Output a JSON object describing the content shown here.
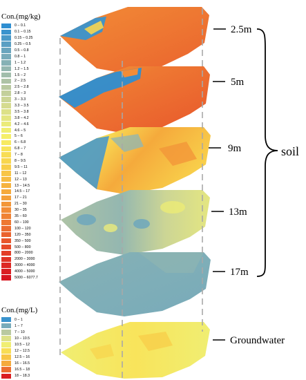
{
  "soil_legend": {
    "title": "Con.(mg/kg)",
    "items": [
      {
        "label": "0 – 0.1",
        "color": "#2e8ed1"
      },
      {
        "label": "0.1 – 0.15",
        "color": "#3a93cd"
      },
      {
        "label": "0.15 – 0.25",
        "color": "#4a99c8"
      },
      {
        "label": "0.25 – 0.5",
        "color": "#5a9fc3"
      },
      {
        "label": "0.5 – 0.8",
        "color": "#6aa5be"
      },
      {
        "label": "0.8 – 1",
        "color": "#78abba"
      },
      {
        "label": "1 – 1.2",
        "color": "#86b1b5"
      },
      {
        "label": "1.2 – 1.5",
        "color": "#94b7b0"
      },
      {
        "label": "1.5 – 2",
        "color": "#a1bdab"
      },
      {
        "label": "2 – 2.5",
        "color": "#aec3a6"
      },
      {
        "label": "2.5 – 2.8",
        "color": "#b9c9a1"
      },
      {
        "label": "2.8 – 3",
        "color": "#c3cf9b"
      },
      {
        "label": "3 – 3.3",
        "color": "#ccd595"
      },
      {
        "label": "3.3 – 3.5",
        "color": "#d5db8f"
      },
      {
        "label": "3.5 – 3.8",
        "color": "#dde188"
      },
      {
        "label": "3.8 – 4.2",
        "color": "#e4e681"
      },
      {
        "label": "4.2 – 4.6",
        "color": "#ebeb7a"
      },
      {
        "label": "4.6 – 5",
        "color": "#f0ee72"
      },
      {
        "label": "5 – 6",
        "color": "#f5ef6a"
      },
      {
        "label": "6 – 6.8",
        "color": "#f7ea62"
      },
      {
        "label": "6.8 – 7",
        "color": "#f8e45b"
      },
      {
        "label": "7 – 8",
        "color": "#f8dd55"
      },
      {
        "label": "8 – 9.5",
        "color": "#f8d64f"
      },
      {
        "label": "9.5 – 11",
        "color": "#f8ce4a"
      },
      {
        "label": "11 – 12",
        "color": "#f8c546"
      },
      {
        "label": "12 – 13",
        "color": "#f7bc42"
      },
      {
        "label": "13 – 14.5",
        "color": "#f6b33f"
      },
      {
        "label": "14.5 – 17",
        "color": "#f5aa3c"
      },
      {
        "label": "17 – 21",
        "color": "#f4a03a"
      },
      {
        "label": "21 – 30",
        "color": "#f39638"
      },
      {
        "label": "30 – 35",
        "color": "#f28c36"
      },
      {
        "label": "35 – 60",
        "color": "#f08234"
      },
      {
        "label": "60 – 100",
        "color": "#ee7832"
      },
      {
        "label": "100 – 120",
        "color": "#ec6d30"
      },
      {
        "label": "120 – 350",
        "color": "#ea622e"
      },
      {
        "label": "350 – 500",
        "color": "#e8572c"
      },
      {
        "label": "500 – 800",
        "color": "#e64b2a"
      },
      {
        "label": "800 – 2000",
        "color": "#e33f28"
      },
      {
        "label": "2000 – 3000",
        "color": "#e03326"
      },
      {
        "label": "3000 – 4000",
        "color": "#dd2824"
      },
      {
        "label": "4000 – 5000",
        "color": "#da1e22"
      },
      {
        "label": "5000 – 6077.7",
        "color": "#d71520"
      }
    ]
  },
  "groundwater_legend": {
    "title": "Con.(mg/L)",
    "items": [
      {
        "label": "0 – 1",
        "color": "#3a93cd"
      },
      {
        "label": "1 – 7",
        "color": "#78abba"
      },
      {
        "label": "7 – 10",
        "color": "#b9c9a1"
      },
      {
        "label": "10 – 10.5",
        "color": "#dde188"
      },
      {
        "label": "10.5 – 12",
        "color": "#f0ee72"
      },
      {
        "label": "12 – 12.5",
        "color": "#f8dd55"
      },
      {
        "label": "12.5 – 16",
        "color": "#f8c546"
      },
      {
        "label": "16 – 16.5",
        "color": "#f5aa3c"
      },
      {
        "label": "16.5 – 18",
        "color": "#ec6d30"
      },
      {
        "label": "18 – 18.3",
        "color": "#da1e22"
      }
    ]
  },
  "layers": [
    {
      "label": "2.5m"
    },
    {
      "label": "5m"
    },
    {
      "label": "9m"
    },
    {
      "label": "13m"
    },
    {
      "label": "17m"
    },
    {
      "label": "Groundwater"
    }
  ],
  "soil_label": "soil"
}
